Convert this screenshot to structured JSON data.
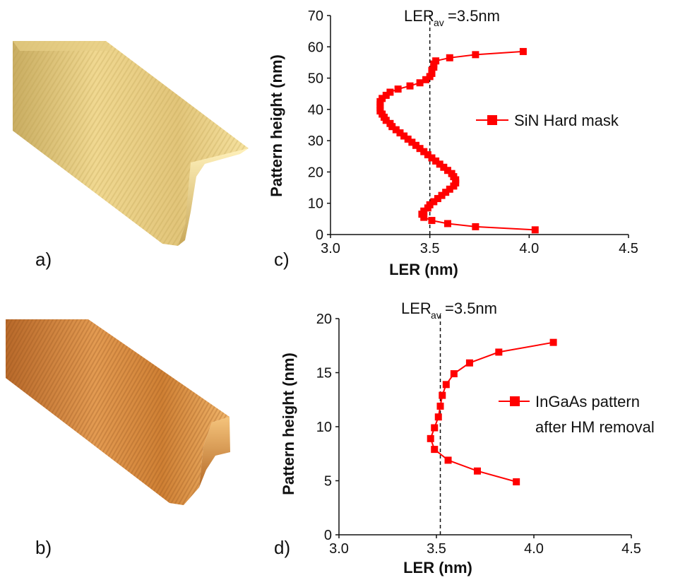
{
  "panel_labels": {
    "a": "a)",
    "b": "b)",
    "c": "c)",
    "d": "d)"
  },
  "colors": {
    "series": "#ff0000",
    "gold_light": "#f4dd93",
    "gold_dark": "#b89a4a",
    "orange_light": "#e8a25a",
    "orange_dark": "#a65b1c"
  },
  "chart_data": [
    {
      "id": "c",
      "type": "scatter",
      "xlabel": "LER (nm)",
      "ylabel": "Pattern height (nm)",
      "xlim": [
        3.0,
        4.5
      ],
      "ylim": [
        0,
        70
      ],
      "xticks": [
        "3.0",
        "3.5",
        "4.0",
        "4.5"
      ],
      "yticks": [
        "0",
        "10",
        "20",
        "30",
        "40",
        "50",
        "60",
        "70"
      ],
      "annotation": {
        "main": "LER",
        "sub": "av",
        "tail": "=3.5nm"
      },
      "reference_x": 3.5,
      "legend_position": "right",
      "series": [
        {
          "name": "SiN Hard mask",
          "points": [
            [
              4.03,
              1.5
            ],
            [
              3.73,
              2.5
            ],
            [
              3.59,
              3.5
            ],
            [
              3.51,
              4.5
            ],
            [
              3.47,
              5.5
            ],
            [
              3.46,
              6.5
            ],
            [
              3.47,
              7.5
            ],
            [
              3.49,
              8.5
            ],
            [
              3.5,
              9.5
            ],
            [
              3.52,
              10.5
            ],
            [
              3.54,
              11.5
            ],
            [
              3.56,
              12.5
            ],
            [
              3.58,
              13.5
            ],
            [
              3.6,
              14.5
            ],
            [
              3.62,
              15.5
            ],
            [
              3.63,
              16.5
            ],
            [
              3.63,
              17.5
            ],
            [
              3.62,
              18.5
            ],
            [
              3.61,
              19.5
            ],
            [
              3.59,
              20.5
            ],
            [
              3.57,
              21.5
            ],
            [
              3.55,
              22.5
            ],
            [
              3.53,
              23.5
            ],
            [
              3.51,
              24.5
            ],
            [
              3.49,
              25.5
            ],
            [
              3.47,
              26.5
            ],
            [
              3.45,
              27.5
            ],
            [
              3.43,
              28.5
            ],
            [
              3.41,
              29.5
            ],
            [
              3.39,
              30.5
            ],
            [
              3.37,
              31.5
            ],
            [
              3.35,
              32.5
            ],
            [
              3.33,
              33.5
            ],
            [
              3.31,
              34.5
            ],
            [
              3.3,
              35.5
            ],
            [
              3.28,
              36.5
            ],
            [
              3.27,
              37.5
            ],
            [
              3.26,
              38.5
            ],
            [
              3.25,
              39.5
            ],
            [
              3.25,
              40.5
            ],
            [
              3.25,
              41.5
            ],
            [
              3.25,
              42.5
            ],
            [
              3.26,
              43.5
            ],
            [
              3.28,
              44.5
            ],
            [
              3.3,
              45.5
            ],
            [
              3.34,
              46.5
            ],
            [
              3.4,
              47.5
            ],
            [
              3.45,
              48.5
            ],
            [
              3.48,
              49.5
            ],
            [
              3.5,
              50.5
            ],
            [
              3.51,
              51.5
            ],
            [
              3.51,
              52.5
            ],
            [
              3.52,
              53.5
            ],
            [
              3.52,
              54.5
            ],
            [
              3.53,
              55.5
            ],
            [
              3.6,
              56.5
            ],
            [
              3.73,
              57.5
            ],
            [
              3.97,
              58.5
            ]
          ]
        }
      ]
    },
    {
      "id": "d",
      "type": "line",
      "xlabel": "LER (nm)",
      "ylabel": "Pattern height (nm)",
      "xlim": [
        3.0,
        4.5
      ],
      "ylim": [
        0,
        20
      ],
      "xticks": [
        "3.0",
        "3.5",
        "4.0",
        "4.5"
      ],
      "yticks": [
        "0",
        "5",
        "10",
        "15",
        "20"
      ],
      "annotation": {
        "main": "LER",
        "sub": "av",
        "tail": "=3.5nm"
      },
      "reference_x": 3.52,
      "legend_position": "right",
      "series": [
        {
          "name": "InGaAs pattern",
          "name_line2": "after HM removal",
          "points": [
            [
              3.91,
              4.9
            ],
            [
              3.71,
              5.9
            ],
            [
              3.56,
              6.9
            ],
            [
              3.49,
              7.9
            ],
            [
              3.47,
              8.9
            ],
            [
              3.49,
              9.9
            ],
            [
              3.51,
              10.9
            ],
            [
              3.52,
              11.9
            ],
            [
              3.53,
              12.9
            ],
            [
              3.55,
              13.9
            ],
            [
              3.59,
              14.9
            ],
            [
              3.67,
              15.9
            ],
            [
              3.82,
              16.9
            ],
            [
              4.1,
              17.8
            ]
          ]
        }
      ]
    }
  ]
}
